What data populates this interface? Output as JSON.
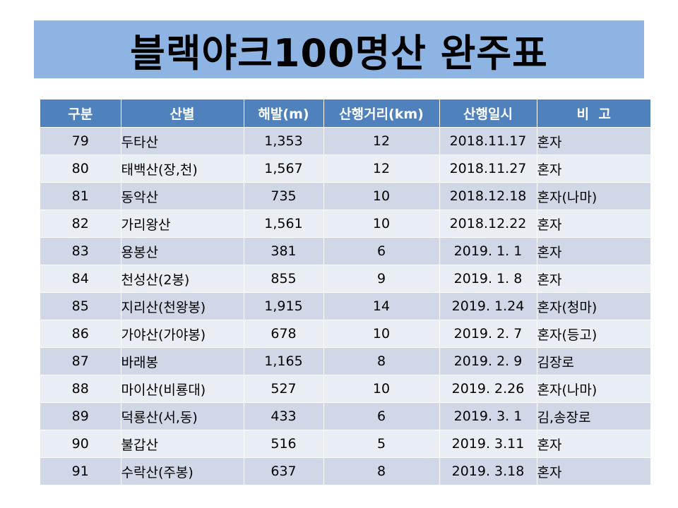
{
  "title": "블랙야크100명산 완주표",
  "table": {
    "headers": [
      "구분",
      "산별",
      "해발(m)",
      "산행거리(km)",
      "산행일시",
      "비  고"
    ],
    "rows": [
      {
        "no": "79",
        "mountain": "두타산",
        "elevation": "1,353",
        "distance": "12",
        "date": "2018.11.17",
        "note": "혼자"
      },
      {
        "no": "80",
        "mountain": "태백산(장,천)",
        "elevation": "1,567",
        "distance": "12",
        "date": "2018.11.27",
        "note": "혼자"
      },
      {
        "no": "81",
        "mountain": "동악산",
        "elevation": "735",
        "distance": "10",
        "date": "2018.12.18",
        "note": "혼자(나마)"
      },
      {
        "no": "82",
        "mountain": "가리왕산",
        "elevation": "1,561",
        "distance": "10",
        "date": "2018.12.22",
        "note": "혼자"
      },
      {
        "no": "83",
        "mountain": "용봉산",
        "elevation": "381",
        "distance": "6",
        "date": "2019. 1. 1",
        "note": "혼자"
      },
      {
        "no": "84",
        "mountain": "천성산(2봉)",
        "elevation": "855",
        "distance": "9",
        "date": "2019. 1. 8",
        "note": "혼자"
      },
      {
        "no": "85",
        "mountain": "지리산(천왕봉)",
        "elevation": "1,915",
        "distance": "14",
        "date": "2019. 1.24",
        "note": "혼자(청마)"
      },
      {
        "no": "86",
        "mountain": "가야산(가야봉)",
        "elevation": "678",
        "distance": "10",
        "date": "2019. 2. 7",
        "note": "혼자(등고)"
      },
      {
        "no": "87",
        "mountain": "바래봉",
        "elevation": "1,165",
        "distance": "8",
        "date": "2019. 2. 9",
        "note": "김장로"
      },
      {
        "no": "88",
        "mountain": "마이산(비룡대)",
        "elevation": "527",
        "distance": "10",
        "date": "2019. 2.26",
        "note": "혼자(나마)"
      },
      {
        "no": "89",
        "mountain": "덕룡산(서,동)",
        "elevation": "433",
        "distance": "6",
        "date": "2019. 3. 1",
        "note": "김,송장로"
      },
      {
        "no": "90",
        "mountain": "불갑산",
        "elevation": "516",
        "distance": "5",
        "date": "2019. 3.11",
        "note": "혼자"
      },
      {
        "no": "91",
        "mountain": "수락산(주봉)",
        "elevation": "637",
        "distance": "8",
        "date": "2019. 3.18",
        "note": "혼자"
      }
    ]
  },
  "colors": {
    "title_bar": "#8eb4e3",
    "header_bg": "#4f81bd",
    "row_odd": "#d0d8e8",
    "row_even": "#e9edf4"
  }
}
